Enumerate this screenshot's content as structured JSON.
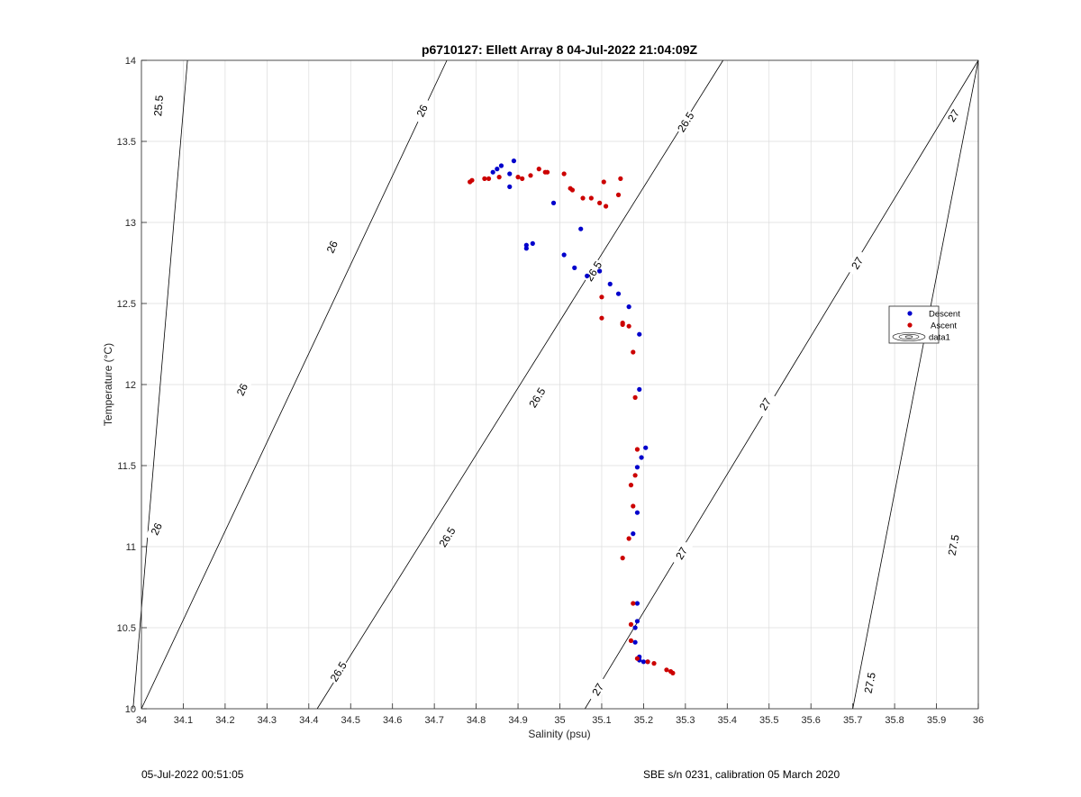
{
  "footer": {
    "left": "05-Jul-2022 00:51:05",
    "right": "SBE s/n 0231, calibration 05 March 2020"
  },
  "chart_data": {
    "type": "scatter",
    "title": "p6710127: Ellett Array 8 04-Jul-2022 21:04:09Z",
    "xlabel": "Salinity (psu)",
    "ylabel": "Temperature (°C)",
    "xlim": [
      34,
      36
    ],
    "ylim": [
      10,
      14
    ],
    "xticks": [
      "34",
      "34.1",
      "34.2",
      "34.3",
      "34.4",
      "34.5",
      "34.6",
      "34.7",
      "34.8",
      "34.9",
      "35",
      "35.1",
      "35.2",
      "35.3",
      "35.4",
      "35.5",
      "35.6",
      "35.7",
      "35.8",
      "35.9",
      "36"
    ],
    "yticks": [
      "10",
      "10.5",
      "11",
      "11.5",
      "12",
      "12.5",
      "13",
      "13.5",
      "14"
    ],
    "grid": true,
    "legend_position": "right",
    "legend": [
      "Descent",
      "Ascent",
      "data1"
    ],
    "colors": {
      "descent": "#0000cc",
      "ascent": "#cc0000",
      "contour": "#000000"
    },
    "contours": [
      {
        "level": "25.5",
        "s0": 33.98,
        "s1": 34.11,
        "labels": [
          [
            34.04,
            13.72
          ]
        ]
      },
      {
        "level": "26",
        "s0": 34.0,
        "s1": 34.73,
        "labels": [
          [
            34.035,
            11.11
          ],
          [
            34.24,
            11.97
          ],
          [
            34.455,
            12.85
          ],
          [
            34.67,
            13.69
          ]
        ]
      },
      {
        "level": "26.5",
        "s0": 34.42,
        "s1": 35.39,
        "labels": [
          [
            34.47,
            10.23
          ],
          [
            34.73,
            11.06
          ],
          [
            34.945,
            11.92
          ],
          [
            35.08,
            12.7
          ],
          [
            35.3,
            13.62
          ]
        ]
      },
      {
        "level": "27",
        "s0": 35.06,
        "s1": 36.0,
        "labels": [
          [
            35.09,
            10.12
          ],
          [
            35.29,
            10.96
          ],
          [
            35.49,
            11.88
          ],
          [
            35.71,
            12.75
          ],
          [
            35.94,
            13.66
          ]
        ]
      },
      {
        "level": "27.5",
        "s0": 35.7,
        "s1": 36.0,
        "labels": [
          [
            35.74,
            10.16
          ],
          [
            35.94,
            11.01
          ]
        ]
      }
    ],
    "series": [
      {
        "name": "Descent",
        "points": [
          [
            34.89,
            13.38
          ],
          [
            34.86,
            13.35
          ],
          [
            34.85,
            13.33
          ],
          [
            34.84,
            13.31
          ],
          [
            34.88,
            13.3
          ],
          [
            34.88,
            13.22
          ],
          [
            34.985,
            13.12
          ],
          [
            35.05,
            12.96
          ],
          [
            34.92,
            12.86
          ],
          [
            34.935,
            12.87
          ],
          [
            34.92,
            12.84
          ],
          [
            35.01,
            12.8
          ],
          [
            35.035,
            12.72
          ],
          [
            35.065,
            12.67
          ],
          [
            35.095,
            12.7
          ],
          [
            35.12,
            12.62
          ],
          [
            35.14,
            12.56
          ],
          [
            35.165,
            12.48
          ],
          [
            35.19,
            12.31
          ],
          [
            35.19,
            11.97
          ],
          [
            35.205,
            11.61
          ],
          [
            35.195,
            11.55
          ],
          [
            35.185,
            11.49
          ],
          [
            35.185,
            11.21
          ],
          [
            35.175,
            11.08
          ],
          [
            35.185,
            10.65
          ],
          [
            35.185,
            10.54
          ],
          [
            35.18,
            10.5
          ],
          [
            35.18,
            10.41
          ],
          [
            35.19,
            10.32
          ],
          [
            35.2,
            10.29
          ],
          [
            35.21,
            10.29
          ],
          [
            35.19,
            10.3
          ]
        ]
      },
      {
        "name": "Ascent",
        "points": [
          [
            34.785,
            13.25
          ],
          [
            34.79,
            13.26
          ],
          [
            34.82,
            13.27
          ],
          [
            34.83,
            13.27
          ],
          [
            34.855,
            13.28
          ],
          [
            34.9,
            13.28
          ],
          [
            34.91,
            13.27
          ],
          [
            34.93,
            13.29
          ],
          [
            34.95,
            13.33
          ],
          [
            34.965,
            13.31
          ],
          [
            34.97,
            13.31
          ],
          [
            35.01,
            13.3
          ],
          [
            35.025,
            13.21
          ],
          [
            35.03,
            13.2
          ],
          [
            35.055,
            13.15
          ],
          [
            35.075,
            13.15
          ],
          [
            35.095,
            13.12
          ],
          [
            35.11,
            13.1
          ],
          [
            35.105,
            13.25
          ],
          [
            35.145,
            13.27
          ],
          [
            35.14,
            13.17
          ],
          [
            35.1,
            12.54
          ],
          [
            35.1,
            12.41
          ],
          [
            35.15,
            12.38
          ],
          [
            35.15,
            12.37
          ],
          [
            35.165,
            12.36
          ],
          [
            35.175,
            12.2
          ],
          [
            35.18,
            11.92
          ],
          [
            35.185,
            11.6
          ],
          [
            35.18,
            11.44
          ],
          [
            35.17,
            11.38
          ],
          [
            35.175,
            11.25
          ],
          [
            35.165,
            11.05
          ],
          [
            35.15,
            10.93
          ],
          [
            35.175,
            10.65
          ],
          [
            35.17,
            10.52
          ],
          [
            35.17,
            10.42
          ],
          [
            35.185,
            10.31
          ],
          [
            35.21,
            10.29
          ],
          [
            35.225,
            10.28
          ],
          [
            35.255,
            10.24
          ],
          [
            35.265,
            10.23
          ],
          [
            35.27,
            10.22
          ]
        ]
      }
    ]
  }
}
